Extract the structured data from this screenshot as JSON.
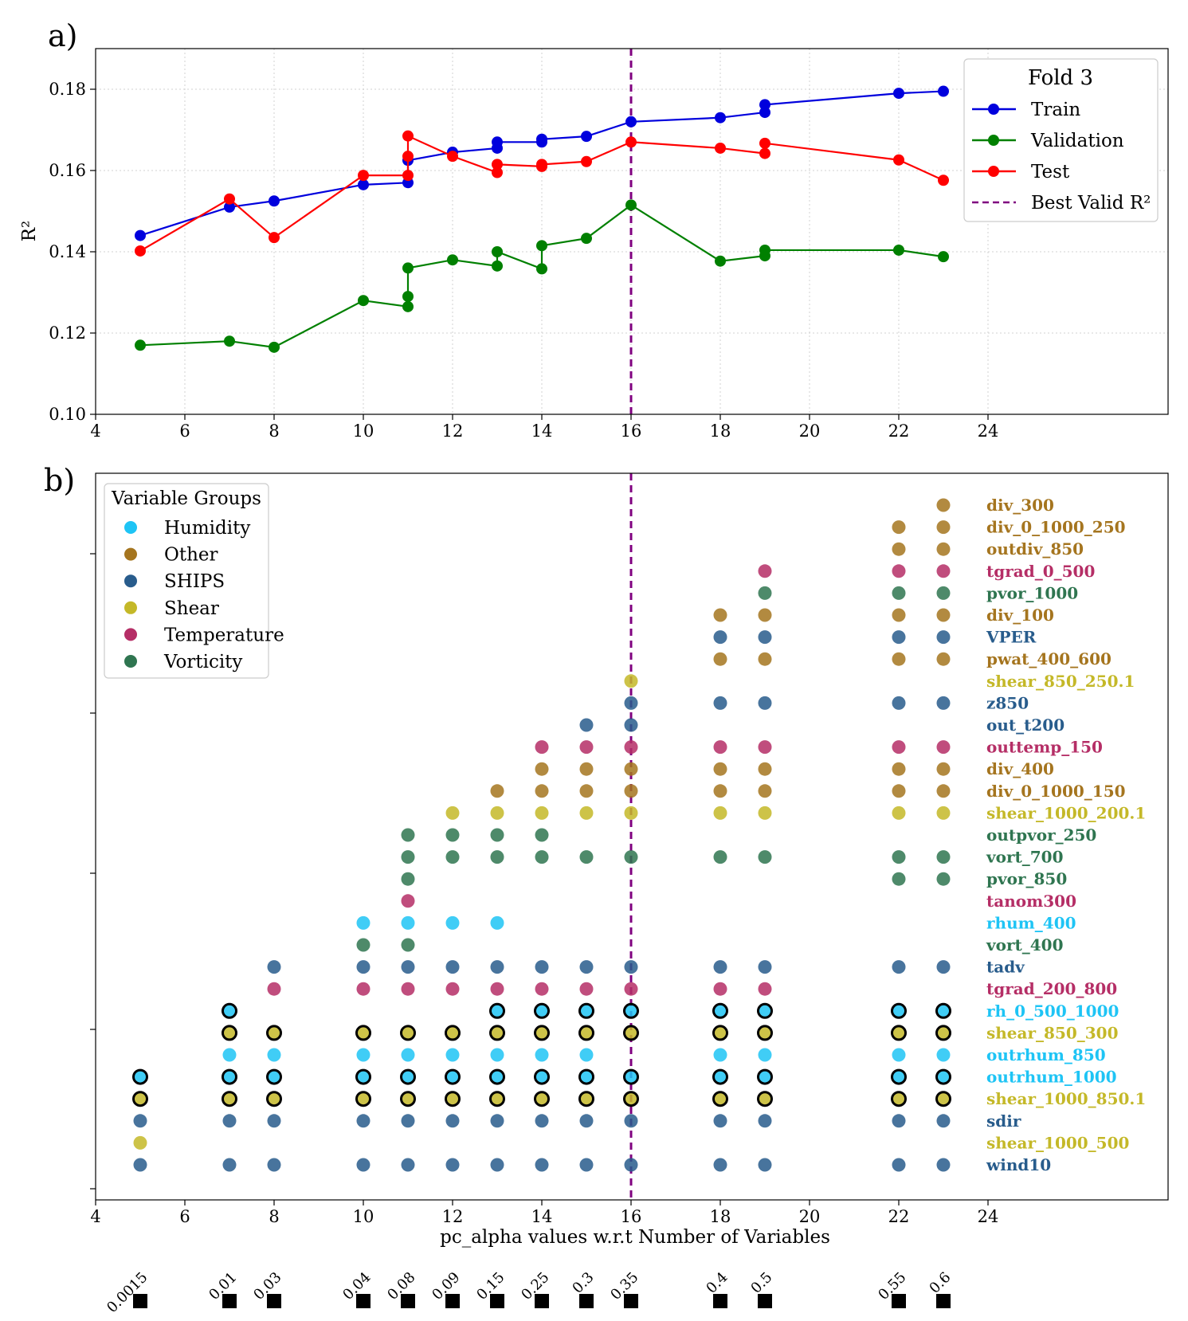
{
  "chart_data": [
    {
      "panel": "a)",
      "type": "line",
      "ylabel": "R²",
      "xlim": [
        4,
        28
      ],
      "ylim": [
        0.1,
        0.19
      ],
      "x_ticks": [
        4,
        6,
        8,
        10,
        12,
        14,
        16,
        18,
        20,
        22,
        24
      ],
      "y_ticks": [
        "0.10",
        "0.12",
        "0.14",
        "0.16",
        "0.18"
      ],
      "grid": true,
      "legend": {
        "title": "Fold 3",
        "placement": "top-right",
        "best_label": "Best Valid R²"
      },
      "best_x": 16,
      "series": [
        {
          "name": "Train",
          "color": "#0000dd",
          "x": [
            5,
            7,
            8,
            10,
            11,
            11,
            12,
            13,
            13,
            14,
            14,
            15,
            16,
            18,
            19,
            19,
            22,
            23
          ],
          "y": [
            0.144,
            0.151,
            0.1525,
            0.1565,
            0.157,
            0.1625,
            0.1645,
            0.1655,
            0.167,
            0.167,
            0.1677,
            0.1684,
            0.172,
            0.173,
            0.1743,
            0.1762,
            0.179,
            0.1795
          ]
        },
        {
          "name": "Validation",
          "color": "#008000",
          "x": [
            5,
            7,
            8,
            10,
            11,
            11,
            11,
            12,
            13,
            13,
            14,
            14,
            15,
            16,
            18,
            19,
            19,
            22,
            23
          ],
          "y": [
            0.117,
            0.118,
            0.1165,
            0.128,
            0.1265,
            0.129,
            0.136,
            0.138,
            0.1365,
            0.14,
            0.1358,
            0.1415,
            0.1433,
            0.1515,
            0.1377,
            0.139,
            0.1404,
            0.1404,
            0.1388
          ]
        },
        {
          "name": "Test",
          "color": "#ff0000",
          "x": [
            5,
            7,
            8,
            10,
            11,
            11,
            11,
            12,
            13,
            13,
            14,
            14,
            15,
            16,
            18,
            19,
            19,
            22,
            23
          ],
          "y": [
            0.1402,
            0.153,
            0.1435,
            0.1588,
            0.1588,
            0.1635,
            0.1685,
            0.1635,
            0.1595,
            0.1615,
            0.161,
            0.1615,
            0.1622,
            0.167,
            0.1655,
            0.1642,
            0.1667,
            0.1626,
            0.1576
          ]
        }
      ]
    },
    {
      "panel": "b)",
      "type": "scatter",
      "xlabel": "pc_alpha values w.r.t Number of Variables",
      "xlim": [
        4,
        28
      ],
      "x_ticks": [
        4,
        6,
        8,
        10,
        12,
        14,
        16,
        18,
        20,
        22,
        24
      ],
      "best_x": 16,
      "legend": {
        "title": "Variable Groups",
        "placement": "top-left"
      },
      "groups": {
        "Humidity": "#1ec4f5",
        "Other": "#a5751f",
        "SHIPS": "#285c8c",
        "Shear": "#c4b828",
        "Temperature": "#b52e66",
        "Vorticity": "#2f7550"
      },
      "variables": [
        {
          "name": "div_300",
          "group": "Other"
        },
        {
          "name": "div_0_1000_250",
          "group": "Other"
        },
        {
          "name": "outdiv_850",
          "group": "Other"
        },
        {
          "name": "tgrad_0_500",
          "group": "Temperature"
        },
        {
          "name": "pvor_1000",
          "group": "Vorticity"
        },
        {
          "name": "div_100",
          "group": "Other"
        },
        {
          "name": "VPER",
          "group": "SHIPS"
        },
        {
          "name": "pwat_400_600",
          "group": "Other"
        },
        {
          "name": "shear_850_250.1",
          "group": "Shear"
        },
        {
          "name": "z850",
          "group": "SHIPS"
        },
        {
          "name": "out_t200",
          "group": "SHIPS"
        },
        {
          "name": "outtemp_150",
          "group": "Temperature"
        },
        {
          "name": "div_400",
          "group": "Other"
        },
        {
          "name": "div_0_1000_150",
          "group": "Other"
        },
        {
          "name": "shear_1000_200.1",
          "group": "Shear"
        },
        {
          "name": "outpvor_250",
          "group": "Vorticity"
        },
        {
          "name": "vort_700",
          "group": "Vorticity"
        },
        {
          "name": "pvor_850",
          "group": "Vorticity"
        },
        {
          "name": "tanom300",
          "group": "Temperature"
        },
        {
          "name": "rhum_400",
          "group": "Humidity"
        },
        {
          "name": "vort_400",
          "group": "Vorticity"
        },
        {
          "name": "tadv",
          "group": "SHIPS"
        },
        {
          "name": "tgrad_200_800",
          "group": "Temperature"
        },
        {
          "name": "rh_0_500_1000",
          "group": "Humidity"
        },
        {
          "name": "shear_850_300",
          "group": "Shear"
        },
        {
          "name": "outrhum_850",
          "group": "Humidity"
        },
        {
          "name": "outrhum_1000",
          "group": "Humidity"
        },
        {
          "name": "shear_1000_850.1",
          "group": "Shear"
        },
        {
          "name": "sdir",
          "group": "SHIPS"
        },
        {
          "name": "shear_1000_500",
          "group": "Shear"
        },
        {
          "name": "wind10",
          "group": "SHIPS"
        }
      ],
      "columns": [
        {
          "x": 5,
          "alpha": "0.0015",
          "rows": [
            26,
            27,
            28,
            29,
            30
          ],
          "bold_rows": [
            26,
            27
          ]
        },
        {
          "x": 7,
          "alpha": "0.01",
          "rows": [
            23,
            24,
            25,
            26,
            27,
            28,
            30
          ],
          "bold_rows": [
            23,
            24,
            26,
            27
          ]
        },
        {
          "x": 8,
          "alpha": "0.03",
          "rows": [
            21,
            22,
            24,
            25,
            26,
            27,
            28,
            30
          ],
          "bold_rows": [
            24,
            26,
            27
          ]
        },
        {
          "x": 10,
          "alpha": "0.04",
          "rows": [
            19,
            20,
            21,
            22,
            24,
            25,
            26,
            27,
            28,
            30
          ],
          "bold_rows": [
            24,
            26,
            27
          ]
        },
        {
          "x": 11,
          "alpha": "0.08",
          "rows": [
            15,
            16,
            17,
            18,
            19,
            20,
            21,
            22,
            24,
            25,
            26,
            27,
            28,
            30
          ],
          "bold_rows": [
            24,
            26,
            27
          ]
        },
        {
          "x": 12,
          "alpha": "0.09",
          "rows": [
            14,
            15,
            16,
            19,
            21,
            22,
            24,
            25,
            26,
            27,
            28,
            30
          ],
          "bold_rows": [
            24,
            26,
            27
          ]
        },
        {
          "x": 13,
          "alpha": "0.15",
          "rows": [
            13,
            14,
            15,
            16,
            19,
            21,
            22,
            23,
            24,
            25,
            26,
            27,
            28,
            30
          ],
          "bold_rows": [
            23,
            24,
            26,
            27
          ]
        },
        {
          "x": 14,
          "alpha": "0.25",
          "rows": [
            11,
            12,
            13,
            14,
            15,
            16,
            21,
            22,
            23,
            24,
            25,
            26,
            27,
            28,
            30
          ],
          "bold_rows": [
            23,
            24,
            26,
            27
          ]
        },
        {
          "x": 15,
          "alpha": "0.3",
          "rows": [
            10,
            11,
            12,
            13,
            14,
            16,
            21,
            22,
            23,
            24,
            25,
            26,
            27,
            28,
            30
          ],
          "bold_rows": [
            23,
            24,
            26,
            27
          ]
        },
        {
          "x": 16,
          "alpha": "0.35",
          "rows": [
            8,
            9,
            10,
            11,
            12,
            13,
            14,
            16,
            21,
            22,
            23,
            24,
            26,
            27,
            28,
            30
          ],
          "bold_rows": [
            23,
            24,
            26,
            27
          ]
        },
        {
          "x": 18,
          "alpha": "0.4",
          "rows": [
            5,
            6,
            7,
            9,
            11,
            12,
            13,
            14,
            16,
            21,
            22,
            23,
            24,
            25,
            26,
            27,
            28,
            30
          ],
          "bold_rows": [
            23,
            24,
            26,
            27
          ]
        },
        {
          "x": 19,
          "alpha": "0.5",
          "rows": [
            3,
            4,
            5,
            6,
            7,
            9,
            11,
            12,
            13,
            14,
            16,
            21,
            22,
            23,
            24,
            25,
            26,
            27,
            28,
            30
          ],
          "bold_rows": [
            23,
            24,
            26,
            27
          ]
        },
        {
          "x": 22,
          "alpha": "0.55",
          "rows": [
            1,
            2,
            3,
            4,
            5,
            6,
            7,
            9,
            11,
            12,
            13,
            14,
            16,
            17,
            21,
            23,
            24,
            25,
            26,
            27,
            28,
            30
          ],
          "bold_rows": [
            23,
            24,
            26,
            27
          ]
        },
        {
          "x": 23,
          "alpha": "0.6",
          "rows": [
            0,
            1,
            2,
            3,
            4,
            5,
            6,
            7,
            9,
            11,
            12,
            13,
            14,
            16,
            17,
            21,
            23,
            24,
            25,
            26,
            27,
            28,
            30
          ],
          "bold_rows": [
            23,
            24,
            26,
            27
          ]
        }
      ]
    }
  ]
}
